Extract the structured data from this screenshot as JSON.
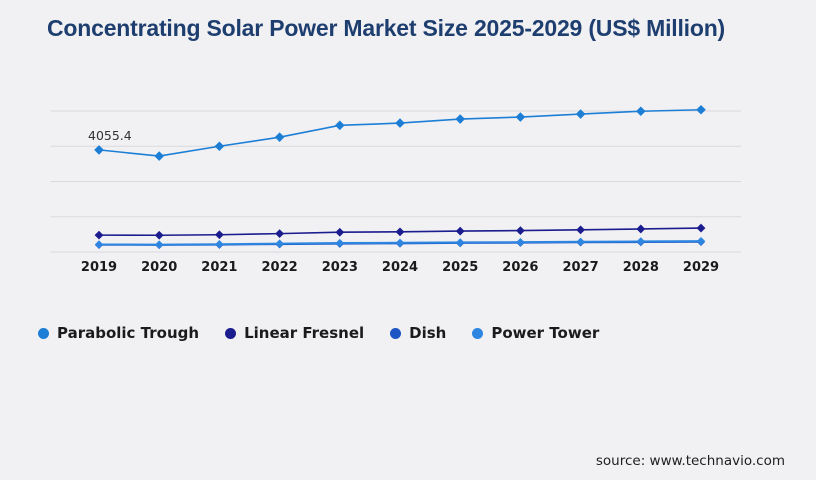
{
  "page": {
    "title": "Concentrating Solar Power Market Size 2025-2029 (US$ Million)",
    "source": "source: www.technavio.com"
  },
  "colors": {
    "background": "#f1f1f4",
    "title": "#1d3e6f",
    "gridline": "#d9d9de",
    "axis_label": "#1a1a1a",
    "point_label": "#333333"
  },
  "chart_data": {
    "type": "line",
    "title": "Concentrating Solar Power Market Size 2025-2029 (US$ Million)",
    "x": [
      2019,
      2020,
      2021,
      2022,
      2023,
      2024,
      2025,
      2026,
      2027,
      2028,
      2029
    ],
    "xlabel": "",
    "ylabel": "US$ Million",
    "ylim": [
      0,
      5600
    ],
    "gridline_values": [
      0,
      1400,
      2800,
      4200,
      5600
    ],
    "grid": "horizontal-only",
    "y_axis_labels_visible": false,
    "marker": "diamond",
    "legend_position": "bottom-left",
    "series": [
      {
        "name": "Parabolic Trough",
        "color": "#1d7ed6",
        "first_point_label": "4055.4",
        "values": [
          4055.4,
          3810,
          4200,
          4560,
          5030,
          5120,
          5280,
          5360,
          5480,
          5590,
          5650
        ]
      },
      {
        "name": "Linear Fresnel",
        "color": "#1b1c8e",
        "values": [
          670,
          665,
          685,
          730,
          785,
          800,
          830,
          850,
          880,
          915,
          950
        ]
      },
      {
        "name": "Dish",
        "color": "#1c55c4",
        "values": [
          280,
          275,
          285,
          305,
          325,
          335,
          350,
          360,
          375,
          385,
          395
        ]
      },
      {
        "name": "Power Tower",
        "color": "#2e86e0",
        "values": [
          300,
          295,
          310,
          335,
          355,
          365,
          380,
          390,
          405,
          420,
          430
        ]
      }
    ]
  }
}
